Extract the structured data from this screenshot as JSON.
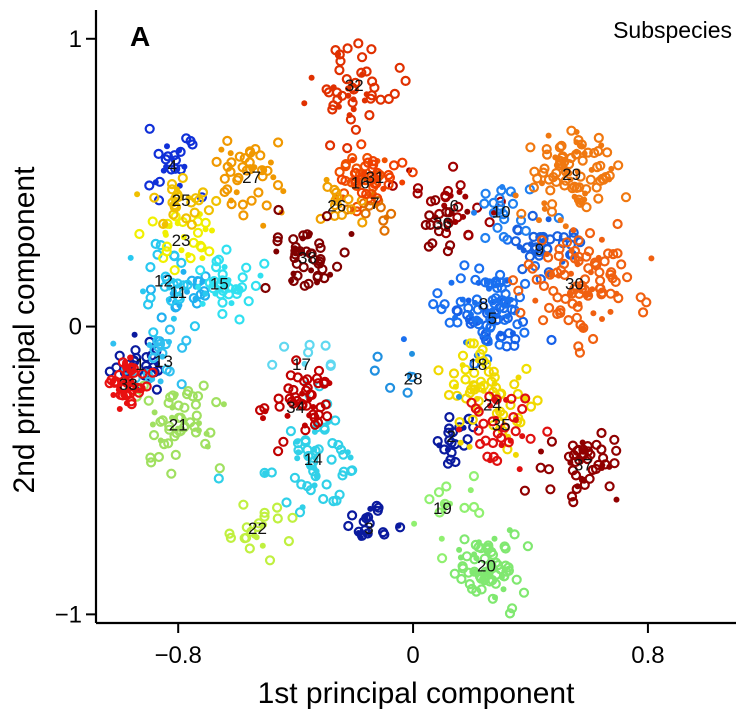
{
  "chart_data": {
    "type": "scatter",
    "panel_label": "A",
    "legend_title": "Subspecies",
    "xlabel": "1st principal component",
    "ylabel": "2nd principal component",
    "xlim": [
      -1.08,
      1.1
    ],
    "ylim": [
      -1.03,
      1.1
    ],
    "x_ticks": [
      -0.8,
      0,
      0.8
    ],
    "x_tick_labels": [
      "−0.8",
      "0",
      "0.8"
    ],
    "y_ticks": [
      -1,
      0,
      1
    ],
    "y_tick_labels": [
      "−1",
      "0",
      "1"
    ],
    "clusters": [
      {
        "label": "1",
        "x": -0.93,
        "y": -0.13,
        "color": "#0a1a9e",
        "n": 28,
        "spread": 0.05
      },
      {
        "label": "2",
        "x": 0.13,
        "y": -0.38,
        "color": "#0a1a9e",
        "n": 22,
        "spread": 0.04
      },
      {
        "label": "3",
        "x": -0.15,
        "y": -0.7,
        "color": "#0a1a9e",
        "n": 22,
        "spread": 0.04
      },
      {
        "label": "4",
        "x": -0.82,
        "y": 0.56,
        "color": "#1030d8",
        "n": 24,
        "spread": 0.05
      },
      {
        "label": "5",
        "x": 0.27,
        "y": 0.03,
        "color": "#1660e8",
        "n": 40,
        "spread": 0.07
      },
      {
        "label": "6",
        "x": 0.14,
        "y": 0.42,
        "color": "#a00000",
        "n": 26,
        "spread": 0.06
      },
      {
        "label": "7",
        "x": -0.13,
        "y": 0.43,
        "color": "#e07000",
        "n": 14,
        "spread": 0.04
      },
      {
        "label": "8",
        "x": 0.24,
        "y": 0.08,
        "color": "#1a70f0",
        "n": 70,
        "spread": 0.08
      },
      {
        "label": "9",
        "x": 0.43,
        "y": 0.27,
        "color": "#1860e0",
        "n": 35,
        "spread": 0.06
      },
      {
        "label": "10",
        "x": 0.3,
        "y": 0.4,
        "color": "#2080f0",
        "n": 22,
        "spread": 0.06
      },
      {
        "label": "11",
        "x": -0.8,
        "y": 0.12,
        "color": "#20b0f0",
        "n": 26,
        "spread": 0.06
      },
      {
        "label": "12",
        "x": -0.85,
        "y": 0.16,
        "color": "#28c8f0",
        "n": 26,
        "spread": 0.06
      },
      {
        "label": "13",
        "x": -0.85,
        "y": -0.12,
        "color": "#30c0f0",
        "n": 24,
        "spread": 0.06
      },
      {
        "label": "14",
        "x": -0.34,
        "y": -0.46,
        "color": "#30d0e8",
        "n": 60,
        "spread": 0.08
      },
      {
        "label": "15",
        "x": -0.66,
        "y": 0.15,
        "color": "#30e0f0",
        "n": 40,
        "spread": 0.06
      },
      {
        "label": "16",
        "x": -0.18,
        "y": 0.5,
        "color": "#f05000",
        "n": 30,
        "spread": 0.05
      },
      {
        "label": "17",
        "x": -0.38,
        "y": -0.13,
        "color": "#60d8f0",
        "n": 10,
        "spread": 0.08
      },
      {
        "label": "18",
        "x": 0.22,
        "y": -0.13,
        "color": "#f0e000",
        "n": 18,
        "spread": 0.06
      },
      {
        "label": "19",
        "x": 0.1,
        "y": -0.63,
        "color": "#90f070",
        "n": 16,
        "spread": 0.06
      },
      {
        "label": "20",
        "x": 0.25,
        "y": -0.83,
        "color": "#80e870",
        "n": 70,
        "spread": 0.06
      },
      {
        "label": "21",
        "x": -0.8,
        "y": -0.34,
        "color": "#a0e060",
        "n": 55,
        "spread": 0.07
      },
      {
        "label": "22",
        "x": -0.53,
        "y": -0.7,
        "color": "#c0f040",
        "n": 22,
        "spread": 0.05
      },
      {
        "label": "23",
        "x": -0.79,
        "y": 0.3,
        "color": "#f0f000",
        "n": 28,
        "spread": 0.06
      },
      {
        "label": "24",
        "x": 0.27,
        "y": -0.27,
        "color": "#f0d800",
        "n": 50,
        "spread": 0.07
      },
      {
        "label": "25",
        "x": -0.79,
        "y": 0.44,
        "color": "#f0c000",
        "n": 26,
        "spread": 0.05
      },
      {
        "label": "26",
        "x": -0.26,
        "y": 0.42,
        "color": "#f0a000",
        "n": 16,
        "spread": 0.05
      },
      {
        "label": "27",
        "x": -0.55,
        "y": 0.52,
        "color": "#f09800",
        "n": 44,
        "spread": 0.06
      },
      {
        "label": "28",
        "x": 0.0,
        "y": -0.18,
        "color": "#2090e0",
        "n": 8,
        "spread": 0.06
      },
      {
        "label": "29",
        "x": 0.54,
        "y": 0.53,
        "color": "#f07810",
        "n": 90,
        "spread": 0.08
      },
      {
        "label": "30",
        "x": 0.55,
        "y": 0.15,
        "color": "#f06010",
        "n": 100,
        "spread": 0.09
      },
      {
        "label": "31",
        "x": -0.13,
        "y": 0.52,
        "color": "#f04000",
        "n": 26,
        "spread": 0.05
      },
      {
        "label": "32",
        "x": -0.2,
        "y": 0.84,
        "color": "#e03000",
        "n": 50,
        "spread": 0.07
      },
      {
        "label": "33",
        "x": -0.97,
        "y": -0.2,
        "color": "#e81010",
        "n": 45,
        "spread": 0.05
      },
      {
        "label": "34",
        "x": -0.4,
        "y": -0.28,
        "color": "#c00000",
        "n": 50,
        "spread": 0.06
      },
      {
        "label": "35",
        "x": 0.3,
        "y": -0.34,
        "color": "#e01010",
        "n": 36,
        "spread": 0.06
      },
      {
        "label": "36",
        "x": 0.1,
        "y": 0.36,
        "color": "#8a0000",
        "n": 18,
        "spread": 0.05
      },
      {
        "label": "37",
        "x": 0.58,
        "y": -0.48,
        "color": "#900000",
        "n": 50,
        "spread": 0.06
      },
      {
        "label": "38",
        "x": -0.36,
        "y": 0.24,
        "color": "#800000",
        "n": 48,
        "spread": 0.06
      }
    ]
  }
}
